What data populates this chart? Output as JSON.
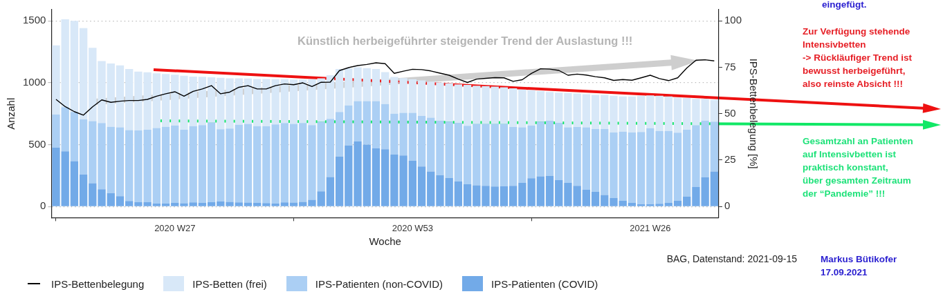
{
  "chart_data": {
    "type": "bar",
    "stacked": true,
    "categories": [
      null,
      null,
      null,
      null,
      null,
      null,
      null,
      null,
      null,
      null,
      null,
      null,
      null,
      "2020 W27",
      null,
      null,
      null,
      null,
      null,
      null,
      null,
      null,
      null,
      null,
      null,
      null,
      null,
      null,
      null,
      null,
      null,
      null,
      null,
      null,
      null,
      null,
      null,
      null,
      null,
      "2020 W53",
      null,
      null,
      null,
      null,
      null,
      null,
      null,
      null,
      null,
      null,
      null,
      null,
      null,
      null,
      null,
      null,
      null,
      null,
      null,
      null,
      null,
      null,
      null,
      null,
      null,
      "2021 W26",
      null,
      null,
      null,
      null,
      null,
      null,
      null
    ],
    "xlabel": "Woche",
    "ylabel": "Anzahl",
    "y2label": "IPS-Bettenbelegung [%]",
    "ylim": [
      -90,
      1590
    ],
    "yticks": [
      0,
      500,
      1000,
      1500
    ],
    "y2lim": [
      -6,
      106
    ],
    "y2ticks": [
      0,
      25,
      50,
      75,
      100
    ],
    "grid": "y",
    "legend": "bottom",
    "series": [
      {
        "name": "IPS-Bettenbelegung",
        "type": "line",
        "axis": "y2",
        "color": "#000000",
        "marker": "none",
        "values": [
          57.7,
          53.8,
          51.1,
          49.2,
          53.7,
          57.4,
          56.1,
          56.7,
          57.1,
          57.1,
          57.7,
          59.4,
          60.7,
          61.8,
          59.4,
          62.0,
          63.3,
          65.1,
          60.7,
          61.6,
          64.2,
          65.1,
          63.3,
          63.3,
          65.1,
          66.0,
          65.6,
          66.6,
          64.6,
          66.9,
          67.0,
          73.2,
          74.8,
          75.9,
          76.5,
          77.4,
          76.9,
          71.7,
          72.9,
          73.9,
          73.7,
          73.0,
          71.8,
          70.7,
          68.6,
          66.8,
          68.6,
          69.0,
          69.4,
          69.3,
          67.4,
          68.3,
          71.7,
          74.2,
          74.0,
          73.3,
          70.7,
          71.3,
          70.8,
          69.9,
          69.3,
          67.9,
          68.4,
          68.0,
          69.3,
          70.7,
          68.9,
          67.8,
          69.3,
          74.6,
          78.8,
          79.0,
          78.4
        ]
      },
      {
        "name": "IPS-Patienten (COVID)",
        "color": "#72aae8",
        "values": [
          476,
          446,
          367,
          258,
          188,
          139,
          109,
          83,
          44,
          36,
          36,
          24,
          24,
          30,
          26,
          34,
          30,
          36,
          40,
          38,
          34,
          32,
          30,
          28,
          24,
          34,
          32,
          38,
          54,
          123,
          238,
          404,
          494,
          525,
          500,
          470,
          462,
          420,
          413,
          370,
          324,
          283,
          254,
          231,
          204,
          180,
          172,
          167,
          161,
          165,
          167,
          191,
          228,
          244,
          246,
          213,
          191,
          167,
          135,
          120,
          93,
          70,
          46,
          31,
          19,
          19,
          22,
          31,
          46,
          80,
          157,
          235,
          283
        ]
      },
      {
        "name": "IPS-Patienten (non-COVID)",
        "color": "#abcff4",
        "values": [
          267,
          357,
          396,
          446,
          502,
          535,
          535,
          557,
          574,
          578,
          584,
          610,
          620,
          624,
          594,
          616,
          628,
          642,
          584,
          592,
          626,
          636,
          620,
          620,
          640,
          640,
          636,
          636,
          604,
          561,
          470,
          359,
          323,
          327,
          352,
          382,
          366,
          330,
          343,
          386,
          407,
          434,
          440,
          454,
          472,
          472,
          495,
          500,
          506,
          502,
          476,
          448,
          426,
          441,
          448,
          463,
          448,
          476,
          504,
          506,
          533,
          528,
          559,
          567,
          583,
          614,
          589,
          580,
          550,
          540,
          500,
          459,
          402
        ]
      },
      {
        "name": "IPS-Betten (frei)",
        "color": "#d8e8f8",
        "values": [
          559,
          709,
          737,
          737,
          592,
          501,
          511,
          500,
          492,
          476,
          464,
          442,
          426,
          410,
          436,
          400,
          390,
          366,
          416,
          406,
          376,
          366,
          380,
          382,
          364,
          354,
          358,
          352,
          370,
          352,
          352,
          347,
          299,
          272,
          266,
          258,
          258,
          296,
          281,
          272,
          288,
          292,
          306,
          310,
          311,
          330,
          309,
          305,
          302,
          296,
          311,
          306,
          285,
          247,
          232,
          244,
          278,
          270,
          268,
          276,
          276,
          296,
          284,
          291,
          292,
          265,
          283,
          278,
          284,
          256,
          213,
          176,
          176
        ]
      }
    ],
    "annotations": [
      "eingefügt.",
      "Künstlich herbeigeführter steigender Trend der Auslastung !!!",
      "Zur Verfügung stehende\nIntensivbetten\n-> Rückläufiger Trend ist\nbewusst herbeigeführt,\nalso reinste Absicht !!!",
      "Gesamtzahl an Patienten\nauf Intensivbetten ist\npraktisch konstant,\nüber gesamten Zeitraum\nder “Pandemie” !!!",
      "BAG, Datenstand: 2021-09-15",
      "Markus Bütikofer\n17.09.2021"
    ]
  }
}
